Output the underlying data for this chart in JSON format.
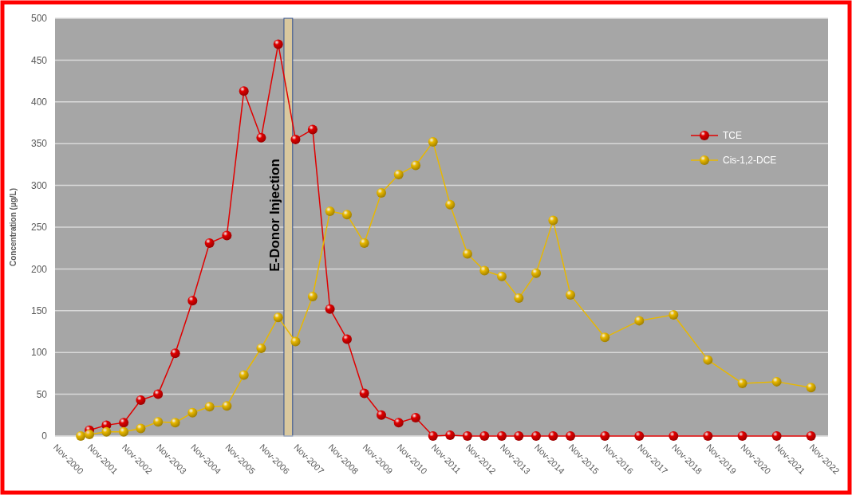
{
  "chart_data": {
    "type": "line",
    "ylabel": "Concentration (µg/L)",
    "xlim": [
      "2000-11",
      "2023-05"
    ],
    "xticks": [
      {
        "value": "2000-11",
        "label": "Nov-2000"
      },
      {
        "value": "2001-11",
        "label": "Nov-2001"
      },
      {
        "value": "2002-11",
        "label": "Nov-2002"
      },
      {
        "value": "2003-11",
        "label": "Nov-2003"
      },
      {
        "value": "2004-11",
        "label": "Nov-2004"
      },
      {
        "value": "2005-11",
        "label": "Nov-2005"
      },
      {
        "value": "2006-11",
        "label": "Nov-2006"
      },
      {
        "value": "2007-11",
        "label": "Nov-2007"
      },
      {
        "value": "2008-11",
        "label": "Nov-2008"
      },
      {
        "value": "2009-11",
        "label": "Nov-2009"
      },
      {
        "value": "2010-11",
        "label": "Nov-2010"
      },
      {
        "value": "2011-11",
        "label": "Nov-2011"
      },
      {
        "value": "2012-11",
        "label": "Nov-2012"
      },
      {
        "value": "2013-11",
        "label": "Nov-2013"
      },
      {
        "value": "2014-11",
        "label": "Nov-2014"
      },
      {
        "value": "2015-11",
        "label": "Nov-2015"
      },
      {
        "value": "2016-11",
        "label": "Nov-2016"
      },
      {
        "value": "2017-11",
        "label": "Nov-2017"
      },
      {
        "value": "2018-11",
        "label": "Nov-2018"
      },
      {
        "value": "2019-11",
        "label": "Nov-2019"
      },
      {
        "value": "2020-11",
        "label": "Nov-2020"
      },
      {
        "value": "2021-11",
        "label": "Nov-2021"
      },
      {
        "value": "2022-11",
        "label": "Nov-2022"
      }
    ],
    "ylim": [
      0,
      500
    ],
    "yticks": [
      0,
      50,
      100,
      150,
      200,
      250,
      300,
      350,
      400,
      450,
      500
    ],
    "grid": "y",
    "legend": "right",
    "marker": "circle",
    "line_style": "solid",
    "bands": [
      {
        "axis": "x",
        "from": "2007-07",
        "to": "2007-10",
        "label": "E-Donor Injection",
        "color": "#d9c89e"
      }
    ],
    "series": [
      {
        "name": "TCE",
        "color": "#e00000",
        "x": [
          "2001-11",
          "2002-05",
          "2002-11",
          "2003-05",
          "2003-11",
          "2004-05",
          "2004-11",
          "2005-05",
          "2005-11",
          "2006-05",
          "2006-11",
          "2007-05",
          "2007-11",
          "2008-05",
          "2008-11",
          "2009-05",
          "2009-11",
          "2010-05",
          "2010-11",
          "2011-05",
          "2011-11",
          "2012-05",
          "2012-11",
          "2013-05",
          "2013-11",
          "2014-05",
          "2014-11",
          "2015-05",
          "2015-11",
          "2016-11",
          "2017-11",
          "2018-11",
          "2019-11",
          "2020-11",
          "2021-11",
          "2022-11"
        ],
        "values": [
          7,
          13,
          16,
          43,
          50,
          99,
          162,
          231,
          240,
          413,
          357,
          469,
          355,
          367,
          152,
          116,
          51,
          25,
          16,
          22,
          0,
          1,
          0,
          0,
          0,
          0,
          0,
          0,
          0,
          0,
          0,
          0,
          0,
          0,
          0,
          0
        ]
      },
      {
        "name": "Cis-1,2-DCE",
        "color": "#e8b800",
        "x": [
          "2001-08",
          "2001-11",
          "2002-05",
          "2002-11",
          "2003-05",
          "2003-11",
          "2004-05",
          "2004-11",
          "2005-05",
          "2005-11",
          "2006-05",
          "2006-11",
          "2007-05",
          "2007-11",
          "2008-05",
          "2008-11",
          "2009-05",
          "2009-11",
          "2010-05",
          "2010-11",
          "2011-05",
          "2011-11",
          "2012-05",
          "2012-11",
          "2013-05",
          "2013-11",
          "2014-05",
          "2014-11",
          "2015-05",
          "2015-11",
          "2016-11",
          "2017-11",
          "2018-11",
          "2019-11",
          "2020-11",
          "2021-11",
          "2022-11"
        ],
        "values": [
          0,
          2,
          5,
          5,
          9,
          17,
          16,
          28,
          35,
          36,
          73,
          105,
          142,
          113,
          167,
          269,
          265,
          231,
          291,
          313,
          324,
          352,
          277,
          218,
          198,
          191,
          165,
          195,
          258,
          169,
          118,
          138,
          145,
          91,
          63,
          65,
          58
        ]
      }
    ]
  }
}
